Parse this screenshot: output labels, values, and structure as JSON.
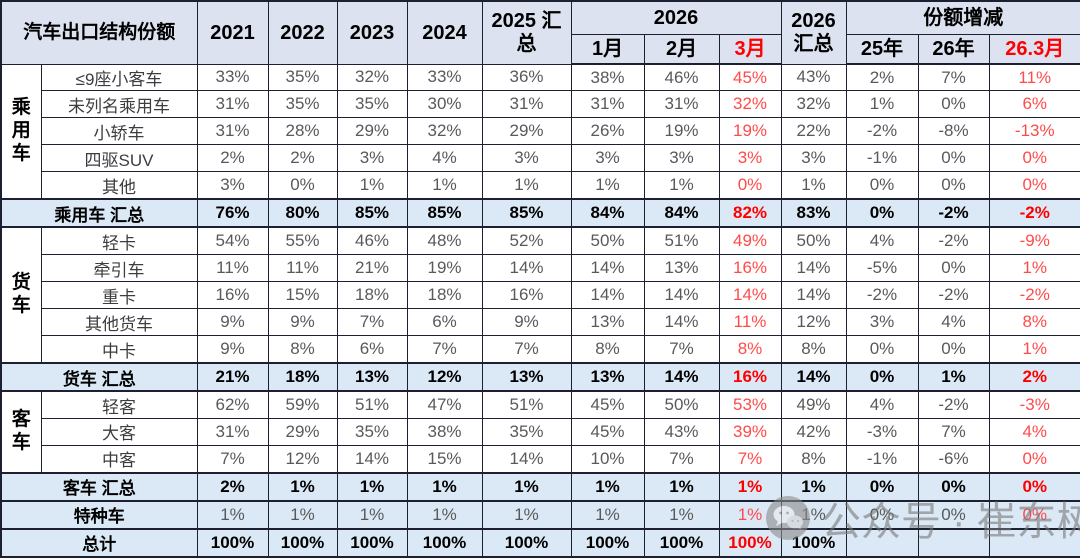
{
  "chart_data": {
    "type": "table",
    "header": {
      "title": "汽车出口结构份额",
      "years": [
        "2021",
        "2022",
        "2023",
        "2024"
      ],
      "y2025": "2025 汇\n总",
      "y2026_group": "2026",
      "months": [
        "1月",
        "2月",
        "3月"
      ],
      "y2026_total": "2026\n汇总",
      "delta_group": "份额增减",
      "delta_cols": [
        "25年",
        "26年",
        "26.3月"
      ]
    },
    "columns": [
      "2021",
      "2022",
      "2023",
      "2024",
      "2025汇总",
      "2026-1月",
      "2026-2月",
      "2026-3月",
      "2026汇总",
      "份额增减25年",
      "份额增减26年",
      "份额增减26.3月"
    ],
    "rows": [
      {
        "type": "data",
        "group": {
          "label": "乘用车",
          "span": 5
        },
        "label": "≤9座小客车",
        "values": [
          "33%",
          "35%",
          "32%",
          "33%",
          "36%",
          "38%",
          "46%",
          "45%",
          "43%",
          "2%",
          "7%",
          "11%"
        ]
      },
      {
        "type": "data",
        "label": "未列名乘用车",
        "values": [
          "31%",
          "35%",
          "35%",
          "30%",
          "31%",
          "31%",
          "31%",
          "32%",
          "32%",
          "1%",
          "0%",
          "6%"
        ]
      },
      {
        "type": "data",
        "label": "小轿车",
        "values": [
          "31%",
          "28%",
          "29%",
          "32%",
          "29%",
          "26%",
          "19%",
          "19%",
          "22%",
          "-2%",
          "-8%",
          "-13%"
        ]
      },
      {
        "type": "data",
        "label": "四驱SUV",
        "values": [
          "2%",
          "2%",
          "3%",
          "4%",
          "3%",
          "3%",
          "3%",
          "3%",
          "3%",
          "-1%",
          "0%",
          "0%"
        ]
      },
      {
        "type": "data",
        "label": "其他",
        "values": [
          "3%",
          "0%",
          "1%",
          "1%",
          "1%",
          "1%",
          "1%",
          "0%",
          "1%",
          "0%",
          "0%",
          "0%"
        ]
      },
      {
        "type": "summary",
        "label": "乘用车 汇总",
        "merged": true,
        "values": [
          "76%",
          "80%",
          "85%",
          "85%",
          "85%",
          "84%",
          "84%",
          "82%",
          "83%",
          "0%",
          "-2%",
          "-2%"
        ]
      },
      {
        "type": "data",
        "group": {
          "label": "货车",
          "span": 5
        },
        "label": "轻卡",
        "values": [
          "54%",
          "55%",
          "46%",
          "48%",
          "52%",
          "50%",
          "51%",
          "49%",
          "50%",
          "4%",
          "-2%",
          "-9%"
        ]
      },
      {
        "type": "data",
        "label": "牵引车",
        "values": [
          "11%",
          "11%",
          "21%",
          "19%",
          "14%",
          "14%",
          "13%",
          "16%",
          "14%",
          "-5%",
          "0%",
          "1%"
        ]
      },
      {
        "type": "data",
        "label": "重卡",
        "values": [
          "16%",
          "15%",
          "18%",
          "18%",
          "16%",
          "14%",
          "14%",
          "14%",
          "14%",
          "-2%",
          "-2%",
          "-2%"
        ]
      },
      {
        "type": "data",
        "label": "其他货车",
        "values": [
          "9%",
          "9%",
          "7%",
          "6%",
          "9%",
          "13%",
          "14%",
          "11%",
          "12%",
          "3%",
          "4%",
          "8%"
        ]
      },
      {
        "type": "data",
        "label": "中卡",
        "values": [
          "9%",
          "8%",
          "6%",
          "7%",
          "7%",
          "8%",
          "7%",
          "8%",
          "8%",
          "0%",
          "0%",
          "1%"
        ]
      },
      {
        "type": "summary",
        "label": "货车 汇总",
        "merged": true,
        "values": [
          "21%",
          "18%",
          "13%",
          "12%",
          "13%",
          "13%",
          "14%",
          "16%",
          "14%",
          "0%",
          "1%",
          "2%"
        ]
      },
      {
        "type": "data",
        "group": {
          "label": "客车",
          "span": 3
        },
        "label": "轻客",
        "values": [
          "62%",
          "59%",
          "51%",
          "47%",
          "51%",
          "45%",
          "50%",
          "53%",
          "49%",
          "4%",
          "-2%",
          "-3%"
        ]
      },
      {
        "type": "data",
        "label": "大客",
        "values": [
          "31%",
          "29%",
          "35%",
          "38%",
          "35%",
          "45%",
          "43%",
          "39%",
          "42%",
          "-3%",
          "7%",
          "4%"
        ]
      },
      {
        "type": "data",
        "label": "中客",
        "values": [
          "7%",
          "12%",
          "14%",
          "15%",
          "14%",
          "10%",
          "7%",
          "7%",
          "8%",
          "-1%",
          "-6%",
          "0%"
        ]
      },
      {
        "type": "summary",
        "label": "客车 汇总",
        "merged": true,
        "values": [
          "2%",
          "1%",
          "1%",
          "1%",
          "1%",
          "1%",
          "1%",
          "1%",
          "1%",
          "0%",
          "0%",
          "0%"
        ]
      },
      {
        "type": "special",
        "label": "特种车",
        "merged": true,
        "values": [
          "1%",
          "1%",
          "1%",
          "1%",
          "1%",
          "1%",
          "1%",
          "1%",
          "1%",
          "0%",
          "0%",
          "0%"
        ]
      },
      {
        "type": "total",
        "label": "总计",
        "merged": true,
        "values": [
          "100%",
          "100%",
          "100%",
          "100%",
          "100%",
          "100%",
          "100%",
          "100%",
          "100%",
          "",
          "",
          ""
        ]
      }
    ],
    "red_value_columns": [
      7,
      11
    ]
  },
  "watermark": {
    "icon": "wechat-icon",
    "text": "公众号 · 崔东树"
  },
  "theme": {
    "header_bg": "#dce2f0",
    "summary_bg": "#dbe9f6",
    "border": "#1c2030",
    "text_gray": "#595959",
    "label_color": "#3d3d3d",
    "red": "#fe0000",
    "red_soft": "#ff4a4a"
  }
}
